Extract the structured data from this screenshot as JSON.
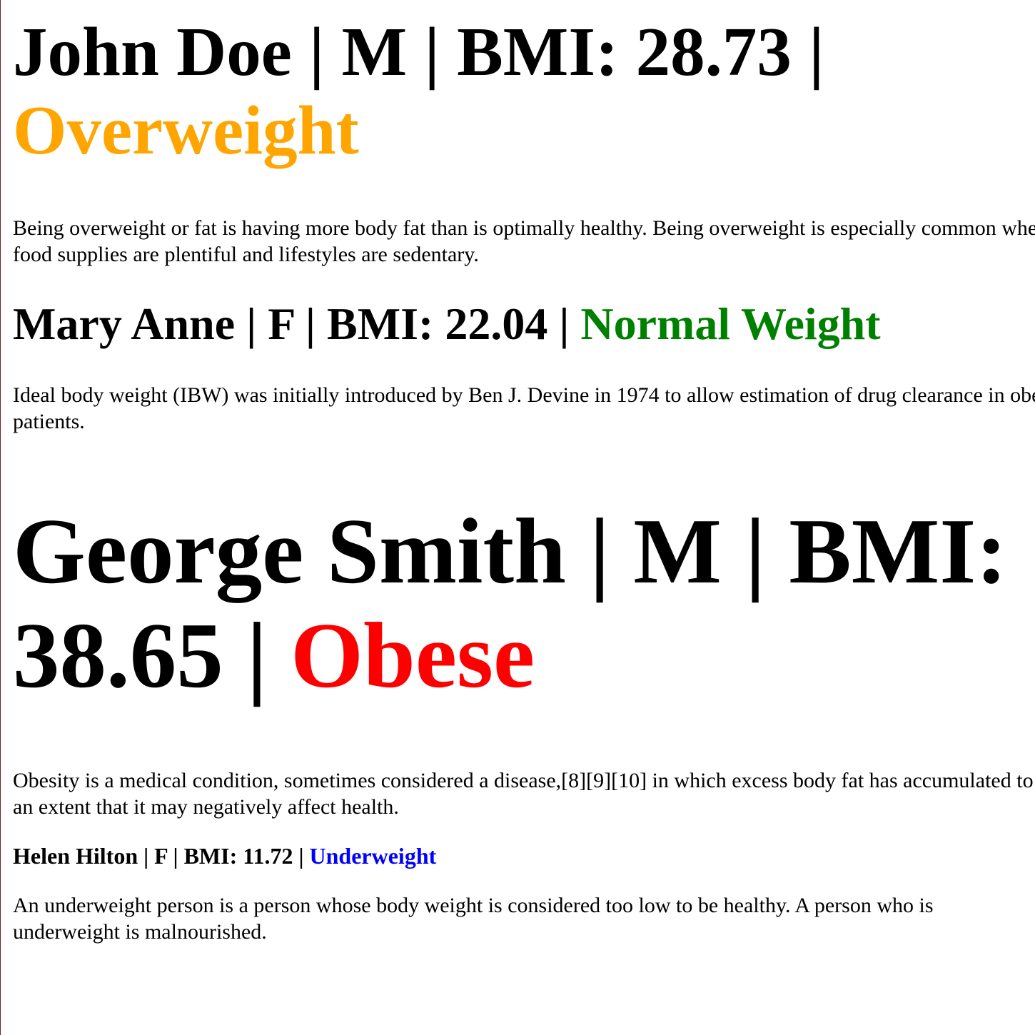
{
  "records": [
    {
      "name": "John Doe",
      "sex": "M",
      "bmi_label": "BMI: 28.73",
      "category": "Overweight",
      "category_color": "#ffa500",
      "description": "Being overweight or fat is having more body fat than is optimally healthy. Being overweight is especially common where food supplies are plentiful and lifestyles are sedentary."
    },
    {
      "name": "Mary Anne",
      "sex": "F",
      "bmi_label": "BMI: 22.04",
      "category": "Normal Weight",
      "category_color": "#008000",
      "description": "Ideal body weight (IBW) was initially introduced by Ben J. Devine in 1974 to allow estimation of drug clearance in obese patients."
    },
    {
      "name": "George Smith",
      "sex": "M",
      "bmi_label": "BMI: 38.65",
      "category": "Obese",
      "category_color": "#ff0000",
      "description": "Obesity is a medical condition, sometimes considered a disease,[8][9][10] in which excess body fat has accumulated to such an extent that it may negatively affect health."
    },
    {
      "name": "Helen Hilton",
      "sex": "F",
      "bmi_label": "BMI: 11.72",
      "category": "Underweight",
      "category_color": "#0000ff",
      "description": "An underweight person is a person whose body weight is considered too low to be healthy. A person who is underweight is malnourished."
    }
  ],
  "separator": " | "
}
